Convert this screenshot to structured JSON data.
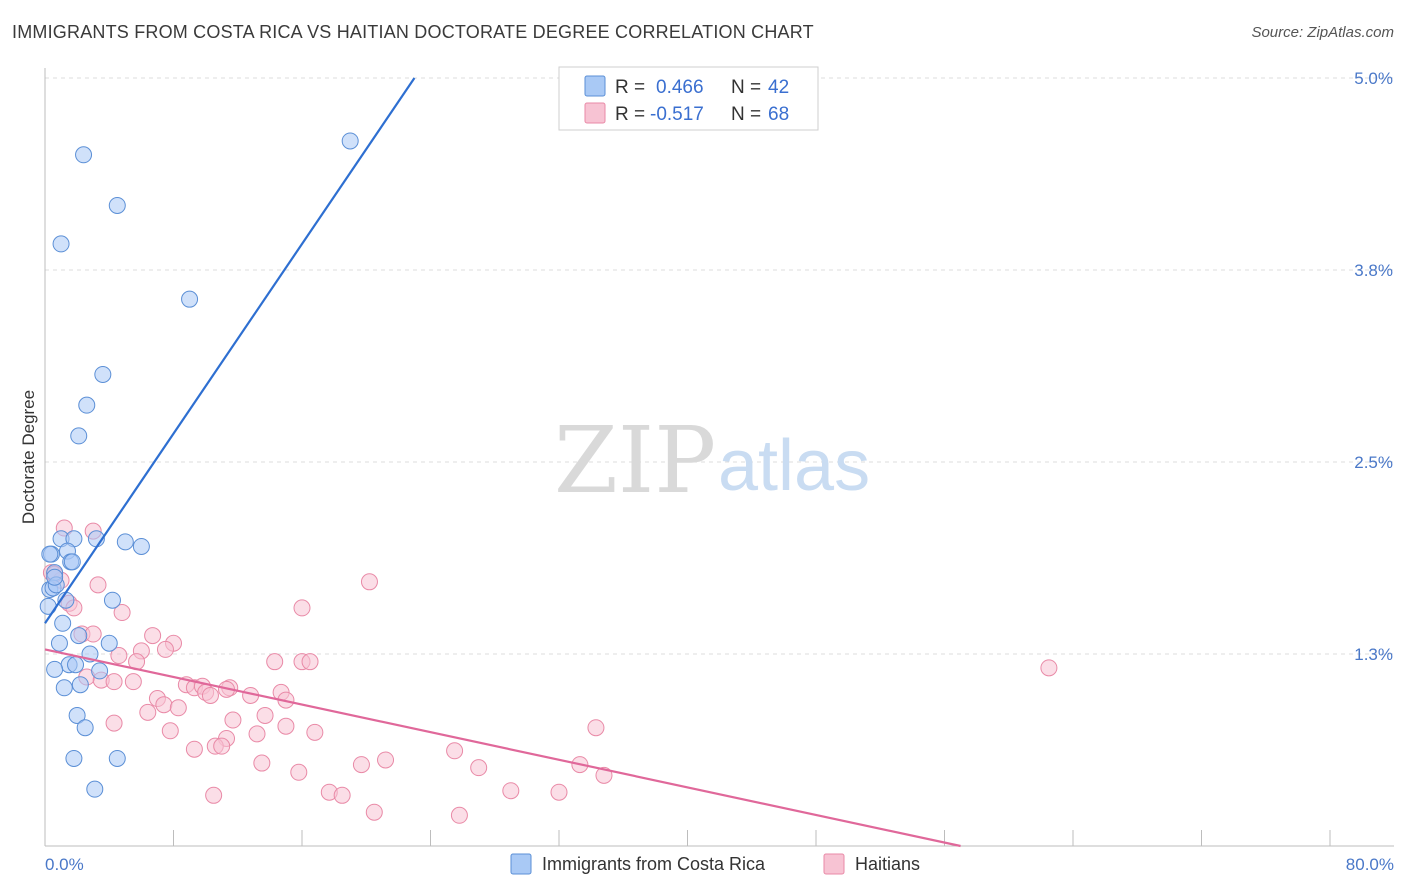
{
  "title": "IMMIGRANTS FROM COSTA RICA VS HAITIAN DOCTORATE DEGREE CORRELATION CHART",
  "source": "Source: ZipAtlas.com",
  "watermark": {
    "zip": "ZIP",
    "atlas": "atlas"
  },
  "legend": {
    "r_label": "R =",
    "n_label": "N =",
    "rows": [
      {
        "r": "0.466",
        "n": "42",
        "color": "#a9c9f5",
        "stroke": "#5b8fd6"
      },
      {
        "r": "-0.517",
        "n": "68",
        "color": "#f7c3d3",
        "stroke": "#e98aa7"
      }
    ]
  },
  "chart_data": {
    "type": "scatter",
    "title": "IMMIGRANTS FROM COSTA RICA VS HAITIAN DOCTORATE DEGREE CORRELATION CHART",
    "xlabel": "",
    "ylabel": "Doctorate Degree",
    "xlim": [
      0,
      80
    ],
    "ylim": [
      0,
      5.0
    ],
    "x_tick_labels": [
      "0.0%",
      "80.0%"
    ],
    "y_ticks": [
      {
        "value": 1.25,
        "label": "1.3%"
      },
      {
        "value": 2.5,
        "label": "2.5%"
      },
      {
        "value": 3.75,
        "label": "3.8%"
      },
      {
        "value": 5.0,
        "label": "5.0%"
      }
    ],
    "series": [
      {
        "name": "Immigrants from Costa Rica",
        "color": "#a9c9f5",
        "stroke": "#5b8fd6",
        "line_color": "#2e6fd1",
        "trend": {
          "x": [
            0,
            23.0
          ],
          "y": [
            1.45,
            5.0
          ]
        },
        "points": [
          [
            2.4,
            4.5
          ],
          [
            4.5,
            4.17
          ],
          [
            1.0,
            3.92
          ],
          [
            9.0,
            3.56
          ],
          [
            3.6,
            3.07
          ],
          [
            2.6,
            2.87
          ],
          [
            2.1,
            2.67
          ],
          [
            19.0,
            4.59
          ],
          [
            0.6,
            1.78
          ],
          [
            1.0,
            2.0
          ],
          [
            3.2,
            2.0
          ],
          [
            1.8,
            2.0
          ],
          [
            5.0,
            1.98
          ],
          [
            6.0,
            1.95
          ],
          [
            0.4,
            1.9
          ],
          [
            1.4,
            1.92
          ],
          [
            1.6,
            1.85
          ],
          [
            1.7,
            1.85
          ],
          [
            0.3,
            1.67
          ],
          [
            0.5,
            1.68
          ],
          [
            1.3,
            1.6
          ],
          [
            4.2,
            1.6
          ],
          [
            0.2,
            1.56
          ],
          [
            1.1,
            1.45
          ],
          [
            2.1,
            1.37
          ],
          [
            4.0,
            1.32
          ],
          [
            0.9,
            1.32
          ],
          [
            2.8,
            1.25
          ],
          [
            1.5,
            1.18
          ],
          [
            1.9,
            1.18
          ],
          [
            0.6,
            1.15
          ],
          [
            3.4,
            1.14
          ],
          [
            2.2,
            1.05
          ],
          [
            1.2,
            1.03
          ],
          [
            2.0,
            0.85
          ],
          [
            2.5,
            0.77
          ],
          [
            1.8,
            0.57
          ],
          [
            4.5,
            0.57
          ],
          [
            3.1,
            0.37
          ],
          [
            0.3,
            1.9
          ],
          [
            0.7,
            1.7
          ],
          [
            0.6,
            1.75
          ]
        ]
      },
      {
        "name": "Haitians",
        "color": "#f7c3d3",
        "stroke": "#e98aa7",
        "line_color": "#e0689a",
        "trend": {
          "x": [
            0,
            57.0
          ],
          "y": [
            1.28,
            0.0
          ]
        },
        "points": [
          [
            1.2,
            2.07
          ],
          [
            3.0,
            2.05
          ],
          [
            0.4,
            1.78
          ],
          [
            1.0,
            1.73
          ],
          [
            0.6,
            1.77
          ],
          [
            3.3,
            1.7
          ],
          [
            1.5,
            1.58
          ],
          [
            1.8,
            1.55
          ],
          [
            4.8,
            1.52
          ],
          [
            2.3,
            1.38
          ],
          [
            3.0,
            1.38
          ],
          [
            6.7,
            1.37
          ],
          [
            8.0,
            1.32
          ],
          [
            6.0,
            1.27
          ],
          [
            4.6,
            1.24
          ],
          [
            7.5,
            1.28
          ],
          [
            5.7,
            1.2
          ],
          [
            14.3,
            1.2
          ],
          [
            16.0,
            1.2
          ],
          [
            16.5,
            1.2
          ],
          [
            2.6,
            1.1
          ],
          [
            3.5,
            1.08
          ],
          [
            4.3,
            1.07
          ],
          [
            5.5,
            1.07
          ],
          [
            8.8,
            1.05
          ],
          [
            9.3,
            1.03
          ],
          [
            9.8,
            1.04
          ],
          [
            11.5,
            1.03
          ],
          [
            11.3,
            1.02
          ],
          [
            10.0,
            1.0
          ],
          [
            10.3,
            0.98
          ],
          [
            12.8,
            0.98
          ],
          [
            14.7,
            1.0
          ],
          [
            15.0,
            0.95
          ],
          [
            7.0,
            0.96
          ],
          [
            7.4,
            0.92
          ],
          [
            6.4,
            0.87
          ],
          [
            8.3,
            0.9
          ],
          [
            13.7,
            0.85
          ],
          [
            11.7,
            0.82
          ],
          [
            4.3,
            0.8
          ],
          [
            7.8,
            0.75
          ],
          [
            15.0,
            0.78
          ],
          [
            16.8,
            0.74
          ],
          [
            11.3,
            0.7
          ],
          [
            13.2,
            0.73
          ],
          [
            10.6,
            0.65
          ],
          [
            9.3,
            0.63
          ],
          [
            11.0,
            0.65
          ],
          [
            13.5,
            0.54
          ],
          [
            19.7,
            0.53
          ],
          [
            21.2,
            0.56
          ],
          [
            25.5,
            0.62
          ],
          [
            27.0,
            0.51
          ],
          [
            15.8,
            0.48
          ],
          [
            17.7,
            0.35
          ],
          [
            18.5,
            0.33
          ],
          [
            10.5,
            0.33
          ],
          [
            29.0,
            0.36
          ],
          [
            32.0,
            0.35
          ],
          [
            20.5,
            0.22
          ],
          [
            25.8,
            0.2
          ],
          [
            33.3,
            0.53
          ],
          [
            34.8,
            0.46
          ],
          [
            34.3,
            0.77
          ],
          [
            16.0,
            1.55
          ],
          [
            20.2,
            1.72
          ],
          [
            62.5,
            1.16
          ]
        ]
      }
    ]
  }
}
